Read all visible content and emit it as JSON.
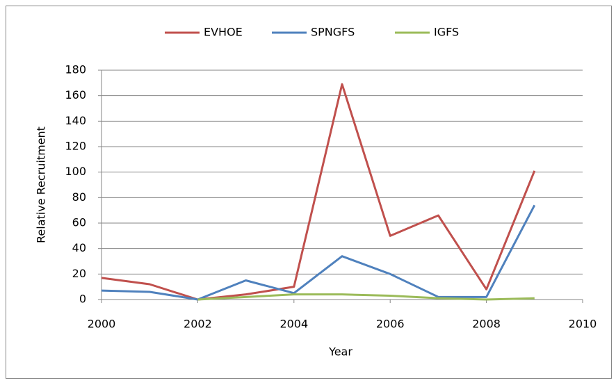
{
  "chart_data": {
    "type": "line",
    "x": [
      2000,
      2001,
      2002,
      2003,
      2004,
      2005,
      2006,
      2007,
      2008,
      2009
    ],
    "series": [
      {
        "name": "EVHOE",
        "color": "#c0504d",
        "values": [
          17,
          12,
          0,
          4,
          10,
          169,
          50,
          66,
          8,
          101
        ]
      },
      {
        "name": "SPNGFS",
        "color": "#4f81bd",
        "values": [
          7,
          6,
          0,
          15,
          5,
          34,
          20,
          2,
          2,
          74
        ]
      },
      {
        "name": "IGFS",
        "color": "#9bbb59",
        "values": [
          null,
          null,
          0,
          2,
          4,
          4,
          3,
          1,
          0,
          1
        ]
      }
    ],
    "xlabel": "Year",
    "ylabel": "Relative Recruitment",
    "xlim": [
      2000,
      2010
    ],
    "xticks": [
      2000,
      2002,
      2004,
      2006,
      2008,
      2010
    ],
    "ylim": [
      0,
      180
    ],
    "yticks": [
      0,
      20,
      40,
      60,
      80,
      100,
      120,
      140,
      160,
      180
    ],
    "grid": true,
    "legend": "top"
  }
}
